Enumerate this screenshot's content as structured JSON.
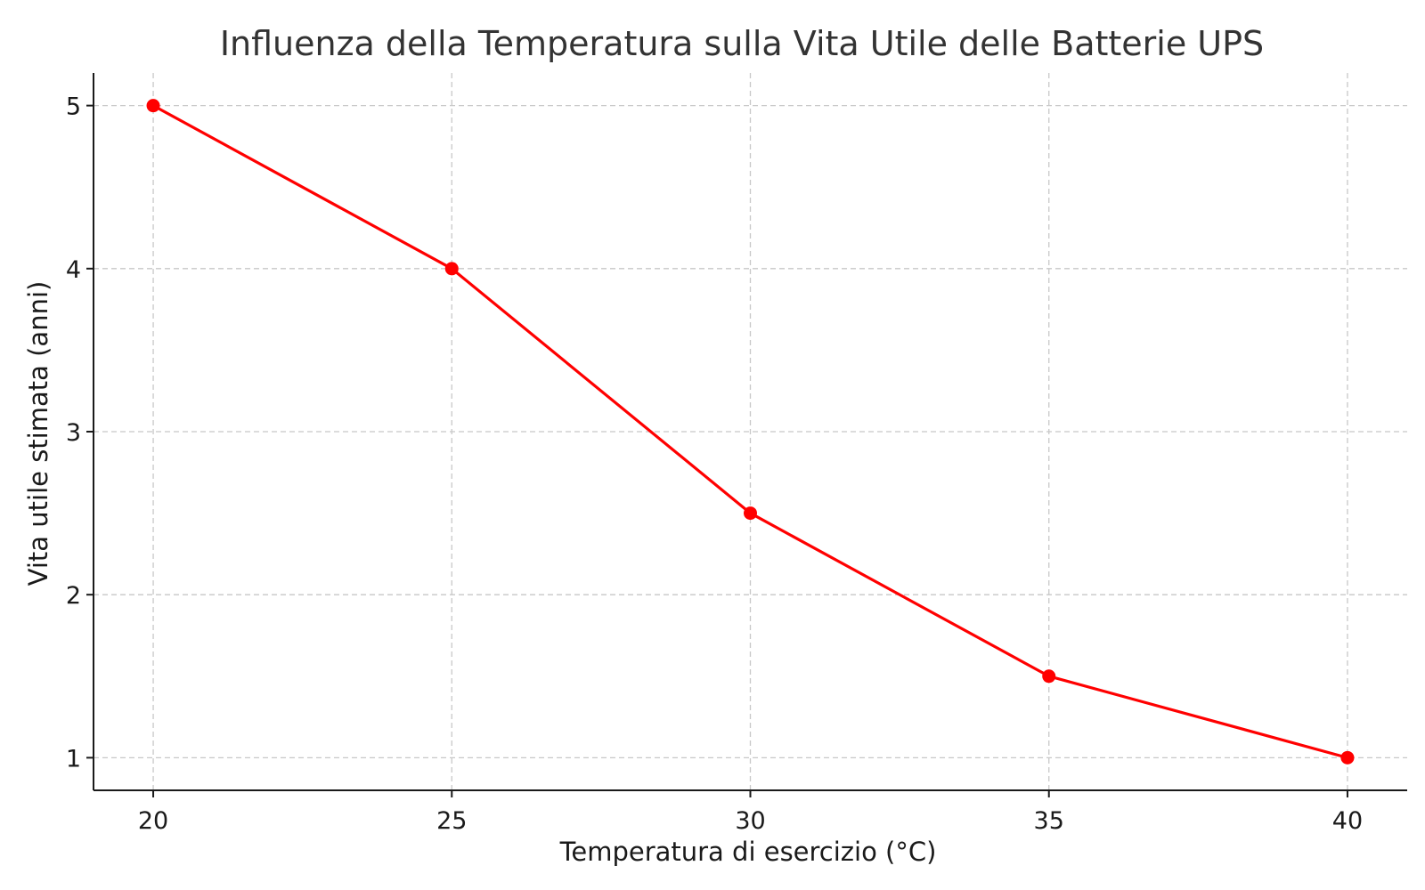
{
  "chart_data": {
    "type": "line",
    "title": "Influenza della Temperatura sulla Vita Utile delle Batterie UPS",
    "xlabel": "Temperatura di esercizio (°C)",
    "ylabel": "Vita utile stimata (anni)",
    "x": [
      20,
      25,
      30,
      35,
      40
    ],
    "series": [
      {
        "values": [
          5,
          4,
          2.5,
          1.5,
          1
        ],
        "color": "#ff0000",
        "marker": "circle"
      }
    ],
    "xlim": [
      19,
      41
    ],
    "ylim": [
      0.8,
      5.2
    ],
    "xticks": [
      20,
      25,
      30,
      35,
      40
    ],
    "yticks": [
      1,
      2,
      3,
      4,
      5
    ],
    "grid": true,
    "legend": false
  }
}
